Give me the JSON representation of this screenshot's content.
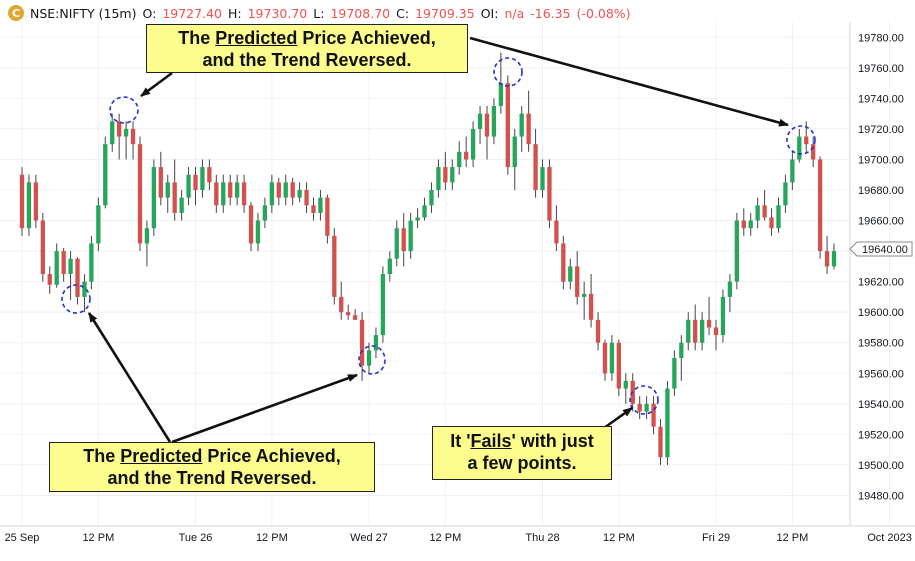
{
  "header": {
    "logo_glyph": "C",
    "symbol": "NSE:NIFTY (15m)",
    "o_label": "O:",
    "o_value": "19727.40",
    "h_label": "H:",
    "h_value": "19730.70",
    "l_label": "L:",
    "l_value": "19708.70",
    "c_label": "C:",
    "c_value": "19709.35",
    "oi_label": "OI:",
    "oi_value": "n/a",
    "change": "-16.35",
    "change_pct": "(-0.08%)"
  },
  "colors": {
    "up": "#26a65b",
    "down": "#d4504c",
    "wick": "#444444",
    "callout_bg": "#fdfd8d",
    "marker": "#2233cc",
    "grid": "#eef0f3",
    "header_value": "#ef5350"
  },
  "callouts": {
    "top": {
      "prefix": "The ",
      "emph": "Predicted",
      "suffix": " Price Achieved,",
      "line2": "and the Trend Reversed."
    },
    "bottom_left": {
      "prefix": "The ",
      "emph": "Predicted",
      "suffix": " Price Achieved,",
      "line2": "and the Trend Reversed."
    },
    "fails": {
      "prefix": "It '",
      "emph": "Fails",
      "suffix": "' with just",
      "line2": "a few points."
    }
  },
  "chart_data": {
    "type": "candlestick",
    "symbol": "NSE:NIFTY",
    "interval": "15m",
    "ylim": [
      19460,
      19790
    ],
    "y_ticks": [
      19480,
      19500,
      19520,
      19540,
      19560,
      19580,
      19600,
      19620,
      19640,
      19660,
      19680,
      19700,
      19720,
      19740,
      19760,
      19780
    ],
    "x_tick_labels": [
      "25 Sep",
      "12 PM",
      "Tue 26",
      "12 PM",
      "Wed 27",
      "12 PM",
      "Thu 28",
      "12 PM",
      "Fri 29",
      "12 PM",
      "Oct 2023"
    ],
    "x_tick_bars": [
      0,
      11,
      25,
      36,
      50,
      61,
      75,
      86,
      100,
      111,
      125
    ],
    "last_price_label": "19640.00",
    "last_price": 19640.0,
    "candles": [
      [
        19690,
        19695,
        19650,
        19655
      ],
      [
        19655,
        19690,
        19650,
        19685
      ],
      [
        19685,
        19690,
        19655,
        19660
      ],
      [
        19660,
        19665,
        19620,
        19625
      ],
      [
        19625,
        19630,
        19612,
        19618
      ],
      [
        19618,
        19645,
        19616,
        19640
      ],
      [
        19640,
        19642,
        19620,
        19625
      ],
      [
        19625,
        19640,
        19608,
        19635
      ],
      [
        19635,
        19636,
        19605,
        19610
      ],
      [
        19610,
        19625,
        19600,
        19620
      ],
      [
        19620,
        19650,
        19615,
        19645
      ],
      [
        19645,
        19675,
        19640,
        19670
      ],
      [
        19670,
        19715,
        19668,
        19710
      ],
      [
        19710,
        19730,
        19705,
        19725
      ],
      [
        19725,
        19730,
        19700,
        19715
      ],
      [
        19715,
        19725,
        19700,
        19720
      ],
      [
        19720,
        19725,
        19700,
        19710
      ],
      [
        19710,
        19715,
        19640,
        19645
      ],
      [
        19645,
        19660,
        19630,
        19655
      ],
      [
        19655,
        19700,
        19650,
        19695
      ],
      [
        19695,
        19705,
        19670,
        19675
      ],
      [
        19675,
        19690,
        19665,
        19685
      ],
      [
        19685,
        19700,
        19660,
        19665
      ],
      [
        19665,
        19680,
        19660,
        19675
      ],
      [
        19675,
        19695,
        19670,
        19690
      ],
      [
        19690,
        19695,
        19670,
        19680
      ],
      [
        19680,
        19700,
        19675,
        19695
      ],
      [
        19695,
        19700,
        19680,
        19685
      ],
      [
        19685,
        19690,
        19665,
        19670
      ],
      [
        19670,
        19690,
        19665,
        19685
      ],
      [
        19685,
        19690,
        19670,
        19675
      ],
      [
        19675,
        19690,
        19670,
        19685
      ],
      [
        19685,
        19690,
        19665,
        19670
      ],
      [
        19670,
        19672,
        19640,
        19645
      ],
      [
        19645,
        19665,
        19640,
        19660
      ],
      [
        19660,
        19675,
        19655,
        19670
      ],
      [
        19670,
        19690,
        19665,
        19685
      ],
      [
        19685,
        19688,
        19670,
        19675
      ],
      [
        19675,
        19690,
        19670,
        19685
      ],
      [
        19685,
        19688,
        19670,
        19675
      ],
      [
        19675,
        19685,
        19672,
        19680
      ],
      [
        19680,
        19685,
        19665,
        19670
      ],
      [
        19670,
        19675,
        19660,
        19665
      ],
      [
        19665,
        19680,
        19660,
        19675
      ],
      [
        19675,
        19677,
        19645,
        19650
      ],
      [
        19650,
        19655,
        19605,
        19610
      ],
      [
        19610,
        19620,
        19595,
        19600
      ],
      [
        19600,
        19605,
        19595,
        19598
      ],
      [
        19598,
        19602,
        19595,
        19595
      ],
      [
        19595,
        19600,
        19555,
        19565
      ],
      [
        19565,
        19580,
        19560,
        19575
      ],
      [
        19575,
        19590,
        19570,
        19585
      ],
      [
        19585,
        19630,
        19580,
        19625
      ],
      [
        19625,
        19640,
        19620,
        19635
      ],
      [
        19635,
        19660,
        19630,
        19655
      ],
      [
        19655,
        19665,
        19630,
        19640
      ],
      [
        19640,
        19665,
        19635,
        19660
      ],
      [
        19660,
        19668,
        19655,
        19662
      ],
      [
        19662,
        19675,
        19660,
        19670
      ],
      [
        19670,
        19685,
        19665,
        19680
      ],
      [
        19680,
        19700,
        19675,
        19695
      ],
      [
        19695,
        19705,
        19680,
        19685
      ],
      [
        19685,
        19700,
        19680,
        19695
      ],
      [
        19695,
        19712,
        19690,
        19705
      ],
      [
        19705,
        19715,
        19695,
        19700
      ],
      [
        19700,
        19725,
        19695,
        19720
      ],
      [
        19720,
        19735,
        19710,
        19730
      ],
      [
        19730,
        19735,
        19700,
        19715
      ],
      [
        19715,
        19740,
        19710,
        19735
      ],
      [
        19735,
        19770,
        19730,
        19750
      ],
      [
        19750,
        19755,
        19690,
        19695
      ],
      [
        19695,
        19720,
        19680,
        19715
      ],
      [
        19715,
        19735,
        19705,
        19730
      ],
      [
        19730,
        19745,
        19705,
        19710
      ],
      [
        19710,
        19720,
        19675,
        19680
      ],
      [
        19680,
        19700,
        19675,
        19695
      ],
      [
        19695,
        19700,
        19655,
        19660
      ],
      [
        19660,
        19670,
        19640,
        19645
      ],
      [
        19645,
        19650,
        19615,
        19620
      ],
      [
        19620,
        19635,
        19615,
        19630
      ],
      [
        19630,
        19640,
        19605,
        19610
      ],
      [
        19610,
        19620,
        19595,
        19612
      ],
      [
        19612,
        19625,
        19590,
        19595
      ],
      [
        19595,
        19600,
        19575,
        19580
      ],
      [
        19580,
        19582,
        19555,
        19560
      ],
      [
        19560,
        19585,
        19555,
        19580
      ],
      [
        19580,
        19582,
        19545,
        19550
      ],
      [
        19550,
        19560,
        19540,
        19555
      ],
      [
        19555,
        19560,
        19535,
        19540
      ],
      [
        19540,
        19545,
        19530,
        19535
      ],
      [
        19535,
        19545,
        19530,
        19540
      ],
      [
        19540,
        19545,
        19520,
        19525
      ],
      [
        19525,
        19530,
        19500,
        19505
      ],
      [
        19505,
        19555,
        19500,
        19550
      ],
      [
        19550,
        19575,
        19545,
        19570
      ],
      [
        19570,
        19585,
        19555,
        19580
      ],
      [
        19580,
        19600,
        19575,
        19595
      ],
      [
        19595,
        19605,
        19575,
        19580
      ],
      [
        19580,
        19600,
        19575,
        19595
      ],
      [
        19595,
        19610,
        19585,
        19590
      ],
      [
        19590,
        19595,
        19575,
        19585
      ],
      [
        19585,
        19615,
        19580,
        19610
      ],
      [
        19610,
        19625,
        19600,
        19620
      ],
      [
        19620,
        19665,
        19615,
        19660
      ],
      [
        19660,
        19668,
        19650,
        19655
      ],
      [
        19655,
        19665,
        19650,
        19660
      ],
      [
        19660,
        19675,
        19655,
        19670
      ],
      [
        19670,
        19680,
        19660,
        19662
      ],
      [
        19662,
        19668,
        19650,
        19655
      ],
      [
        19655,
        19675,
        19652,
        19670
      ],
      [
        19670,
        19690,
        19665,
        19685
      ],
      [
        19685,
        19705,
        19680,
        19700
      ],
      [
        19700,
        19720,
        19698,
        19715
      ],
      [
        19715,
        19725,
        19705,
        19710
      ],
      [
        19710,
        19715,
        19695,
        19700
      ],
      [
        19700,
        19702,
        19635,
        19640
      ],
      [
        19640,
        19650,
        19625,
        19630
      ],
      [
        19630,
        19645,
        19628,
        19640
      ]
    ]
  }
}
